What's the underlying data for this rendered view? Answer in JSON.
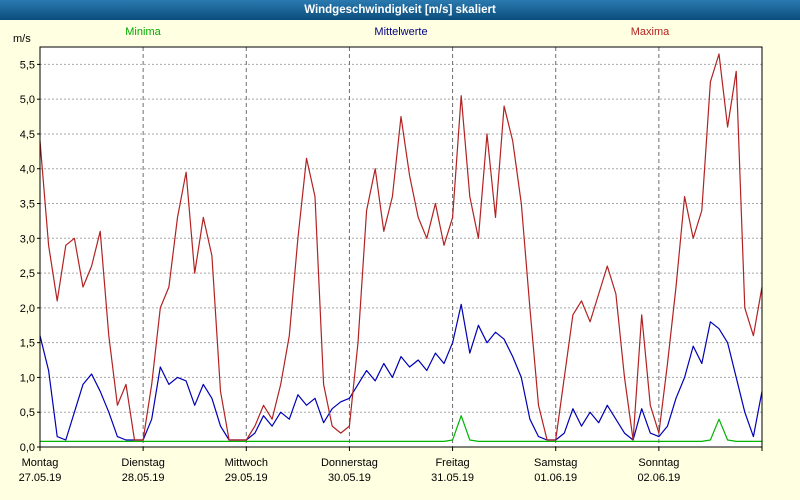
{
  "window": {
    "title": "Windgeschwindigkeit [m/s] skaliert"
  },
  "legend": [
    {
      "key": "minima",
      "label": "Minima",
      "color": "#00aa00"
    },
    {
      "key": "mittelwerte",
      "label": "Mittelwerte",
      "color": "#000080"
    },
    {
      "key": "maxima",
      "label": "Maxima",
      "color": "#b22222"
    }
  ],
  "chart_data": {
    "type": "line",
    "title": "Windgeschwindigkeit [m/s] skaliert",
    "xlabel": "",
    "ylabel": "m/s",
    "ylim": [
      0,
      5.75
    ],
    "ytick_step": 0.5,
    "ytick_labels": [
      "0,0",
      "0,5",
      "1,0",
      "1,5",
      "2,0",
      "2,5",
      "3,0",
      "3,5",
      "4,0",
      "4,5",
      "5,0",
      "5,5"
    ],
    "grid": true,
    "legend_position": "top",
    "points_per_day": 12,
    "days": [
      {
        "name": "Montag",
        "date": "27.05.19"
      },
      {
        "name": "Dienstag",
        "date": "28.05.19"
      },
      {
        "name": "Mittwoch",
        "date": "29.05.19"
      },
      {
        "name": "Donnerstag",
        "date": "30.05.19"
      },
      {
        "name": "Freitag",
        "date": "31.05.19"
      },
      {
        "name": "Samstag",
        "date": "01.06.19"
      },
      {
        "name": "Sonntag",
        "date": "02.06.19"
      }
    ],
    "series": [
      {
        "name": "Minima",
        "color": "#00b400",
        "values": [
          0.08,
          0.08,
          0.08,
          0.08,
          0.08,
          0.08,
          0.08,
          0.08,
          0.08,
          0.08,
          0.08,
          0.08,
          0.08,
          0.08,
          0.08,
          0.08,
          0.08,
          0.08,
          0.08,
          0.08,
          0.08,
          0.08,
          0.08,
          0.08,
          0.08,
          0.08,
          0.08,
          0.08,
          0.08,
          0.08,
          0.08,
          0.08,
          0.08,
          0.08,
          0.08,
          0.08,
          0.08,
          0.08,
          0.08,
          0.08,
          0.08,
          0.08,
          0.08,
          0.08,
          0.08,
          0.08,
          0.08,
          0.08,
          0.1,
          0.45,
          0.1,
          0.08,
          0.08,
          0.08,
          0.08,
          0.08,
          0.08,
          0.08,
          0.08,
          0.08,
          0.08,
          0.08,
          0.08,
          0.08,
          0.08,
          0.08,
          0.08,
          0.08,
          0.08,
          0.08,
          0.08,
          0.08,
          0.08,
          0.08,
          0.08,
          0.08,
          0.08,
          0.08,
          0.1,
          0.4,
          0.1,
          0.08,
          0.08,
          0.08,
          0.08
        ]
      },
      {
        "name": "Mittelwerte",
        "color": "#0000b4",
        "values": [
          1.6,
          1.1,
          0.15,
          0.1,
          0.5,
          0.9,
          1.05,
          0.8,
          0.5,
          0.15,
          0.1,
          0.1,
          0.1,
          0.4,
          1.15,
          0.9,
          1.0,
          0.95,
          0.6,
          0.9,
          0.7,
          0.3,
          0.1,
          0.1,
          0.1,
          0.2,
          0.45,
          0.3,
          0.5,
          0.4,
          0.75,
          0.6,
          0.7,
          0.35,
          0.55,
          0.65,
          0.7,
          0.9,
          1.1,
          0.95,
          1.2,
          1.0,
          1.3,
          1.15,
          1.25,
          1.1,
          1.35,
          1.2,
          1.5,
          2.05,
          1.35,
          1.75,
          1.5,
          1.65,
          1.55,
          1.3,
          1.0,
          0.4,
          0.15,
          0.1,
          0.1,
          0.2,
          0.55,
          0.3,
          0.5,
          0.35,
          0.6,
          0.4,
          0.2,
          0.1,
          0.55,
          0.2,
          0.15,
          0.3,
          0.7,
          1.0,
          1.45,
          1.2,
          1.8,
          1.7,
          1.5,
          1.0,
          0.5,
          0.15,
          0.8
        ]
      },
      {
        "name": "Maxima",
        "color": "#b22222",
        "values": [
          4.4,
          2.9,
          2.1,
          2.9,
          3.0,
          2.3,
          2.6,
          3.1,
          1.6,
          0.6,
          0.9,
          0.1,
          0.1,
          0.9,
          2.0,
          2.3,
          3.3,
          3.95,
          2.5,
          3.3,
          2.75,
          0.8,
          0.1,
          0.1,
          0.1,
          0.3,
          0.6,
          0.4,
          0.9,
          1.6,
          3.0,
          4.15,
          3.6,
          0.9,
          0.3,
          0.2,
          0.3,
          1.5,
          3.4,
          4.0,
          3.1,
          3.6,
          4.75,
          3.9,
          3.3,
          3.0,
          3.5,
          2.9,
          3.3,
          5.05,
          3.6,
          3.0,
          4.5,
          3.3,
          4.9,
          4.4,
          3.5,
          2.0,
          0.6,
          0.1,
          0.1,
          1.0,
          1.9,
          2.1,
          1.8,
          2.2,
          2.6,
          2.2,
          1.0,
          0.1,
          1.9,
          0.6,
          0.2,
          1.2,
          2.3,
          3.6,
          3.0,
          3.4,
          5.25,
          5.65,
          4.6,
          5.4,
          2.0,
          1.6,
          2.3
        ]
      }
    ]
  }
}
